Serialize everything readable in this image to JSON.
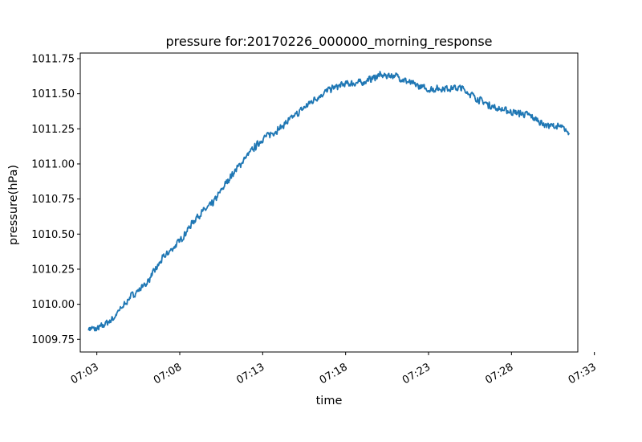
{
  "chart_data": {
    "type": "line",
    "title": "pressure for:20170226_000000_morning_response",
    "xlabel": "time",
    "ylabel": "pressure(hPa)",
    "xlim": [
      "07:02",
      "07:32"
    ],
    "ylim": [
      1009.66,
      1011.79
    ],
    "x_ticks": [
      "07:03",
      "07:08",
      "07:13",
      "07:18",
      "07:23",
      "07:28",
      "07:33"
    ],
    "y_ticks": [
      "1009.75",
      "1010.00",
      "1010.25",
      "1010.50",
      "1010.75",
      "1011.00",
      "1011.25",
      "1011.50",
      "1011.75"
    ],
    "grid": false,
    "legend": "none",
    "line_color": "#1f77b4",
    "noise_amplitude": 0.03,
    "series": [
      {
        "x": [
          "07:02:30",
          "07:03:00",
          "07:04:00",
          "07:05:00",
          "07:06:00",
          "07:07:00",
          "07:08:00",
          "07:09:00",
          "07:10:00",
          "07:11:00",
          "07:12:00",
          "07:13:00",
          "07:14:00",
          "07:15:00",
          "07:16:00",
          "07:17:00",
          "07:18:00",
          "07:19:00",
          "07:20:00",
          "07:21:00",
          "07:22:00",
          "07:23:00",
          "07:24:00",
          "07:25:00",
          "07:26:00",
          "07:27:00",
          "07:28:00",
          "07:29:00",
          "07:30:00",
          "07:31:00",
          "07:31:30"
        ],
        "y": [
          1009.83,
          1009.82,
          1009.9,
          1010.05,
          1010.15,
          1010.33,
          1010.45,
          1010.62,
          1010.72,
          1010.9,
          1011.05,
          1011.18,
          1011.25,
          1011.35,
          1011.45,
          1011.53,
          1011.57,
          1011.58,
          1011.63,
          1011.63,
          1011.57,
          1011.53,
          1011.54,
          1011.54,
          1011.46,
          1011.4,
          1011.37,
          1011.35,
          1011.28,
          1011.26,
          1011.22
        ]
      }
    ]
  }
}
